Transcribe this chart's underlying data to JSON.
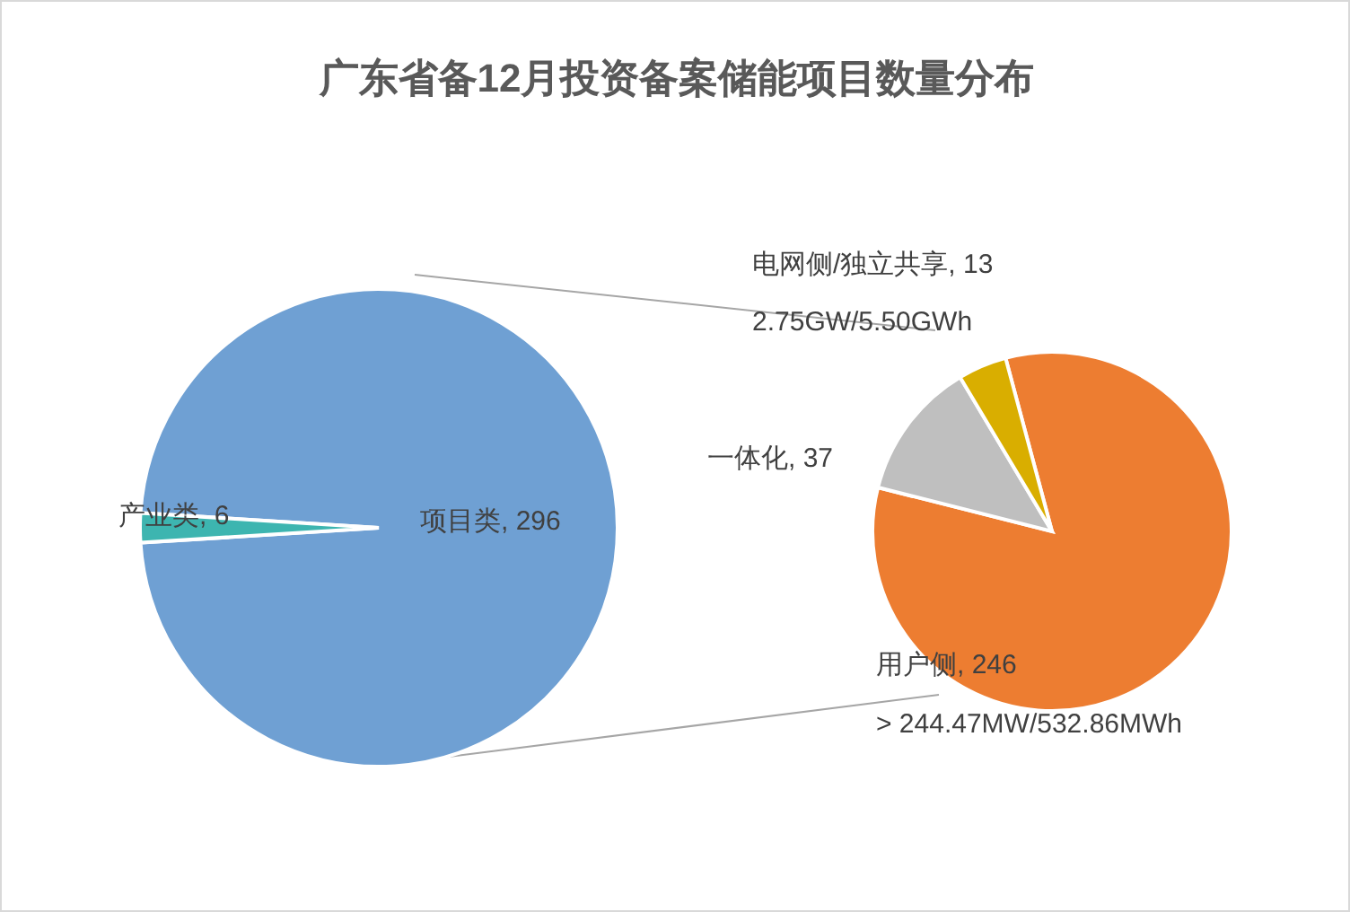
{
  "chart_data": [
    {
      "type": "pie",
      "title": "广东省备12月投资备案储能项目数量分布",
      "categories": [
        "项目类",
        "产业类"
      ],
      "values": [
        296,
        6
      ],
      "value_labels": [
        ", 296",
        ", 6"
      ],
      "colors": [
        "#6fa0d3",
        "#3db5b0"
      ]
    },
    {
      "type": "pie",
      "categories": [
        "用户侧",
        "一体化",
        "电网侧/独立共享"
      ],
      "values": [
        246,
        37,
        13
      ],
      "value_labels": [
        ", 246",
        ", 37",
        ", 13"
      ],
      "colors": [
        "#ed7d31",
        "#bfbfbf",
        "#d9ae00"
      ],
      "annotations": [
        "2.75GW/5.50GWh",
        "> 244.47MW/532.86MWh"
      ]
    }
  ]
}
